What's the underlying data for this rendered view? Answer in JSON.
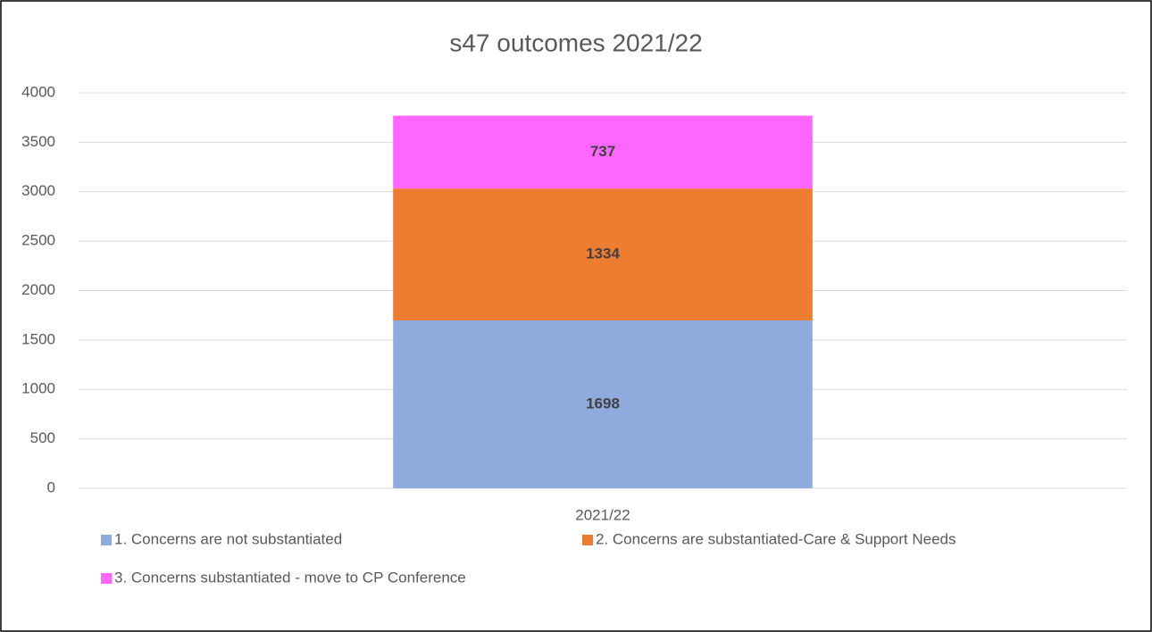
{
  "chart_data": {
    "type": "stacked_bar",
    "title": "s47 outcomes 2021/22",
    "categories": [
      "2021/22"
    ],
    "series": [
      {
        "name": "1. Concerns are not substantiated",
        "color": "#8faadc",
        "values": [
          1698
        ]
      },
      {
        "name": "2. Concerns are substantiated-Care & Support Needs",
        "color": "#ed7d31",
        "values": [
          1334
        ]
      },
      {
        "name": "3. Concerns substantiated - move to CP Conference",
        "color": "#ff66ff",
        "values": [
          737
        ]
      }
    ],
    "ylim": [
      0,
      4000
    ],
    "yticks": [
      0,
      500,
      1000,
      1500,
      2000,
      2500,
      3000,
      3500,
      4000
    ],
    "grid": true,
    "legend": "bottom"
  }
}
